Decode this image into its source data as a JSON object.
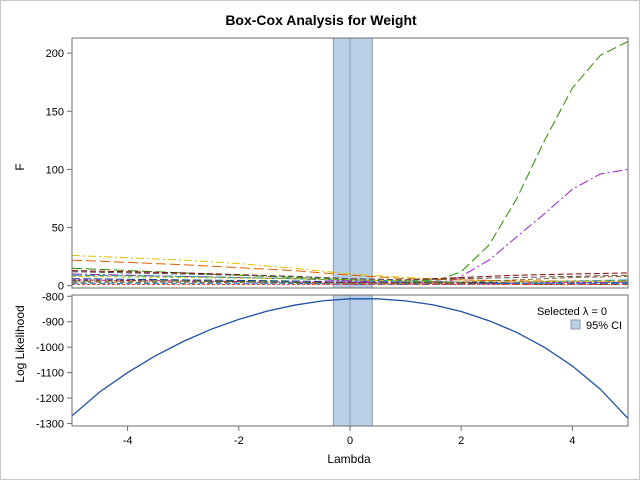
{
  "chart_data": {
    "type": "line",
    "title": "Box-Cox Analysis for Weight",
    "xlabel": "Lambda",
    "xlim": [
      -5,
      5
    ],
    "xticks": [
      -4,
      -2,
      0,
      2,
      4
    ],
    "selected_lambda": 0,
    "ci": [
      -0.3,
      0.4
    ],
    "legend": {
      "placement": "top-right",
      "selected_label": "Selected λ = 0",
      "ci_label": "95% CI"
    },
    "colors": {
      "ci_fill": "#b8cfe8",
      "ci_edge": "#8a9bb0",
      "loglik_line": "#1f4fa8",
      "axis": "#6e6e6e"
    },
    "panels": [
      {
        "ylabel": "F",
        "ylim": [
          -2,
          213
        ],
        "yticks": [
          0,
          50,
          100,
          150,
          200
        ],
        "series": [
          {
            "color": "#2e8b00",
            "dash": "10,4",
            "x": [
              -5,
              -3,
              -1,
              0,
              1,
              1.6,
              2,
              2.5,
              3,
              3.5,
              4,
              4.5,
              5
            ],
            "y": [
              15,
              11,
              7,
              5,
              4,
              5,
              12,
              35,
              75,
              125,
              170,
              198,
              210
            ]
          },
          {
            "color": "#a020c8",
            "dash": "10,3,2,3",
            "x": [
              -5,
              -3,
              -1,
              0,
              1,
              1.8,
              2,
              2.5,
              3,
              3.5,
              4,
              4.5,
              5
            ],
            "y": [
              10,
              8,
              6,
              4,
              3,
              4,
              8,
              22,
              42,
              62,
              83,
              96,
              100
            ]
          },
          {
            "color": "#e0c000",
            "dash": "8,3,2,3",
            "x": [
              -5,
              -4,
              -3,
              -2,
              -1,
              0,
              1,
              2,
              3,
              4,
              5
            ],
            "y": [
              26,
              24,
              22,
              19,
              15,
              10,
              7,
              5,
              4,
              3,
              3
            ]
          },
          {
            "color": "#e06000",
            "dash": "10,4",
            "x": [
              -5,
              -3,
              -1,
              0,
              1,
              2,
              3,
              4,
              5
            ],
            "y": [
              22,
              18,
              13,
              9,
              6,
              5,
              4,
              4,
              4
            ]
          },
          {
            "color": "#8b0000",
            "dash": "6,3",
            "x": [
              -5,
              -3,
              -1,
              0,
              1,
              2,
              3,
              4,
              5
            ],
            "y": [
              13,
              11,
              8,
              6,
              5,
              7,
              9,
              10,
              11
            ]
          },
          {
            "color": "#555555",
            "dash": "6,3",
            "x": [
              -5,
              -3,
              -1,
              0,
              1,
              2,
              3,
              4,
              5
            ],
            "y": [
              12,
              10,
              8,
              6,
              5,
              6,
              7,
              8,
              9
            ]
          },
          {
            "color": "#1a9a9a",
            "dash": "10,3",
            "x": [
              -5,
              -3,
              -1,
              0,
              1,
              2,
              3,
              4,
              5
            ],
            "y": [
              9,
              8,
              6,
              5,
              4,
              3,
              3,
              4,
              5
            ]
          },
          {
            "color": "#c0c000",
            "dash": "4,3",
            "x": [
              -5,
              -3,
              -1,
              0,
              1,
              2,
              3,
              4,
              5
            ],
            "y": [
              8,
              7,
              6,
              5,
              4,
              3,
              3,
              4,
              4
            ]
          },
          {
            "color": "#003b8e",
            "dash": "8,3",
            "x": [
              -5,
              -3,
              -1,
              0,
              1,
              2,
              3,
              4,
              5
            ],
            "y": [
              6,
              5,
              4,
              3,
              3,
              3,
              2,
              2,
              2
            ]
          },
          {
            "color": "#d4009a",
            "dash": "4,2",
            "x": [
              -5,
              -3,
              -1,
              0,
              1,
              2,
              3,
              4,
              5
            ],
            "y": [
              5,
              4,
              3,
              3,
              2,
              2,
              2,
              3,
              3
            ]
          },
          {
            "color": "#4a6000",
            "dash": "8,3",
            "x": [
              -5,
              -3,
              -1,
              0,
              1,
              2,
              3,
              4,
              5
            ],
            "y": [
              4,
              4,
              3,
              2,
              2,
              2,
              1,
              1,
              1
            ]
          },
          {
            "color": "#8c6a2a",
            "dash": "5,3",
            "x": [
              -5,
              -3,
              -1,
              0,
              1,
              2,
              3,
              4,
              5
            ],
            "y": [
              3,
              3,
              2,
              2,
              2,
              3,
              5,
              7,
              8
            ]
          },
          {
            "color": "#0f6fd0",
            "dash": "6,3",
            "x": [
              -5,
              -3,
              -1,
              0,
              1,
              2,
              3,
              4,
              5
            ],
            "y": [
              2,
              2,
              2,
              1,
              1,
              1,
              2,
              2,
              3
            ]
          },
          {
            "color": "#ff4040",
            "dash": "3,2",
            "x": [
              -5,
              -3,
              -1,
              0,
              1,
              2,
              3,
              4,
              5
            ],
            "y": [
              1,
              1,
              1,
              1,
              1,
              1,
              1,
              1,
              1
            ]
          }
        ]
      },
      {
        "ylabel": "Log Likelihood",
        "ylim": [
          -1310,
          -795
        ],
        "yticks": [
          -800,
          -900,
          -1000,
          -1100,
          -1200,
          -1300
        ],
        "series": [
          {
            "x": [
              -5,
              -4.5,
              -4,
              -3.5,
              -3,
              -2.5,
              -2,
              -1.5,
              -1,
              -0.5,
              0,
              0.5,
              1,
              1.5,
              2,
              2.5,
              3,
              3.5,
              4,
              4.5,
              5
            ],
            "y": [
              -1270,
              -1176,
              -1100,
              -1034,
              -978,
              -930,
              -891,
              -859,
              -835,
              -818,
              -810,
              -810,
              -818,
              -834,
              -860,
              -896,
              -942,
              -1001,
              -1074,
              -1165,
              -1280
            ]
          }
        ]
      }
    ]
  }
}
